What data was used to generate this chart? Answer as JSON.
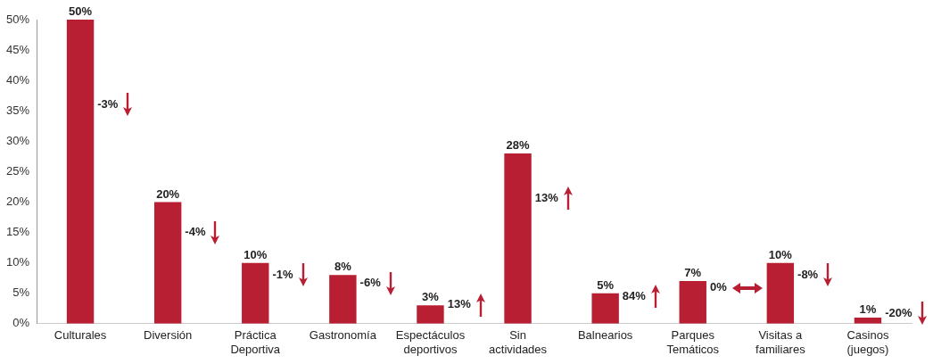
{
  "chart_data": {
    "type": "bar",
    "categories": [
      "Culturales",
      "Diversión",
      "Práctica Deportiva",
      "Gastronomía",
      "Espectáculos deportivos",
      "Sin actividades",
      "Balnearios",
      "Parques Temáticos",
      "Visitas a familiares",
      "Casinos (juegos)"
    ],
    "values": [
      50,
      20,
      10,
      8,
      3,
      28,
      5,
      7,
      10,
      1
    ],
    "value_labels": [
      "50%",
      "20%",
      "10%",
      "8%",
      "3%",
      "28%",
      "5%",
      "7%",
      "10%",
      "1%"
    ],
    "color": "#b81f32",
    "ylim": [
      0,
      50
    ],
    "yticks": [
      {
        "value": 0,
        "label": "0%"
      },
      {
        "value": 5,
        "label": "5%"
      },
      {
        "value": 10,
        "label": "10%"
      },
      {
        "value": 15,
        "label": "15%"
      },
      {
        "value": 20,
        "label": "20%"
      },
      {
        "value": 25,
        "label": "25%"
      },
      {
        "value": 30,
        "label": "30%"
      },
      {
        "value": 35,
        "label": "35%"
      },
      {
        "value": 40,
        "label": "40%"
      },
      {
        "value": 45,
        "label": "45%"
      },
      {
        "value": 50,
        "label": "50%"
      }
    ],
    "grid": false,
    "legend": false,
    "annotations": [
      "-3%",
      "-4%",
      "-1%",
      "-6%",
      "13%",
      "13%",
      "84%",
      "0%",
      "-8%",
      "-20%"
    ]
  }
}
